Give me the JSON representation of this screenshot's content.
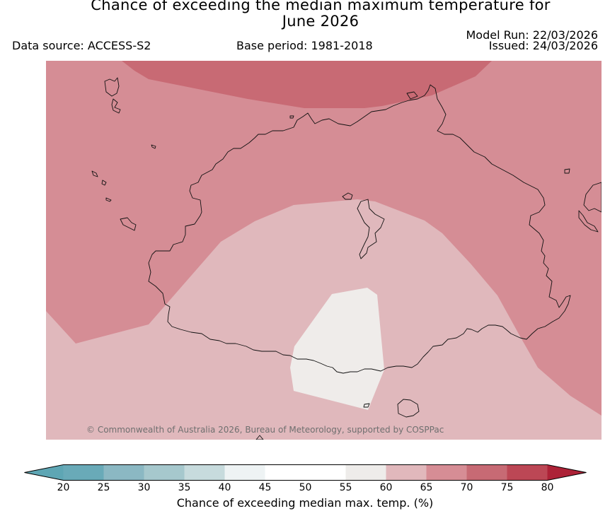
{
  "title_line1": "Chance of exceeding the median maximum temperature for",
  "title_line2": "June 2026",
  "data_source": "Data source: ACCESS-S2",
  "base_period": "Base period: 1981-2018",
  "model_run": "Model Run: 22/03/2026",
  "issued": "Issued: 24/03/2026",
  "copyright": "© Commonwealth of Australia 2026, Bureau of Meteorology, supported by COSPPac",
  "map_zones": [
    {
      "name": "60-65%",
      "color": "#e0b8bc"
    },
    {
      "name": "65-70%",
      "color": "#d58d95"
    },
    {
      "name": "70-75%",
      "color": "#c86a74"
    },
    {
      "name": "50-60%",
      "color": "#efecea"
    }
  ],
  "colorbar": {
    "label": "Chance of exceeding median max. temp. (%)",
    "ticks": [
      "20",
      "25",
      "30",
      "35",
      "40",
      "45",
      "50",
      "55",
      "60",
      "65",
      "70",
      "75",
      "80"
    ],
    "colors": [
      "#5ea6b4",
      "#69aab8",
      "#8bb8c3",
      "#a6c8cd",
      "#c7dbdd",
      "#eef3f4",
      "#ffffff",
      "#ffffff",
      "#eeecea",
      "#e1b8bc",
      "#d68d95",
      "#c76a74",
      "#bc4755",
      "#ad2237"
    ]
  }
}
